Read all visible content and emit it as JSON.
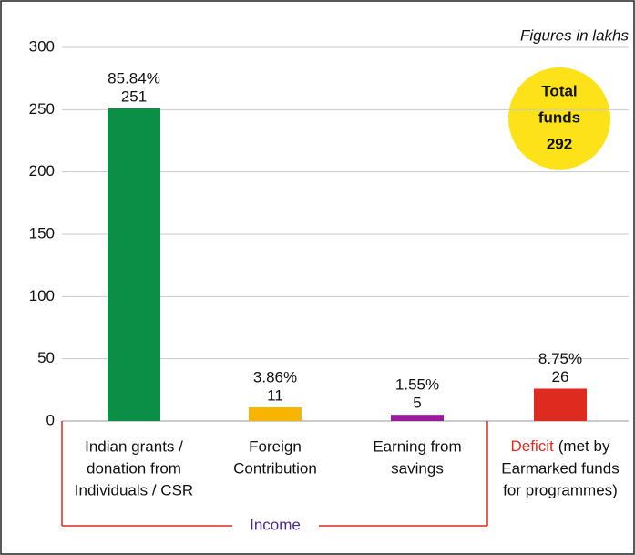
{
  "chart_data": {
    "type": "bar",
    "note": "Figures in lakhs",
    "categories": [
      [
        "Indian grants /",
        "donation from",
        "Individuals / CSR"
      ],
      [
        "Foreign",
        "Contribution"
      ],
      [
        "Earning from",
        "savings"
      ],
      [
        [
          "Deficit",
          "(met by"
        ],
        "Earmarked funds",
        "for programmes)"
      ]
    ],
    "values": [
      251,
      11,
      5,
      26
    ],
    "share_labels": [
      "85.84%",
      "3.86%",
      "1.55%",
      "8.75%"
    ],
    "colors": [
      "#0b8f47",
      "#f7b500",
      "#9a1c9e",
      "#df2b1f"
    ],
    "group_label": "Income",
    "total": {
      "lines": [
        "Total",
        "funds"
      ],
      "value": 292
    },
    "ylim": [
      0,
      300
    ],
    "yticks": [
      0,
      50,
      100,
      150,
      200,
      250,
      300
    ],
    "grid": true
  }
}
